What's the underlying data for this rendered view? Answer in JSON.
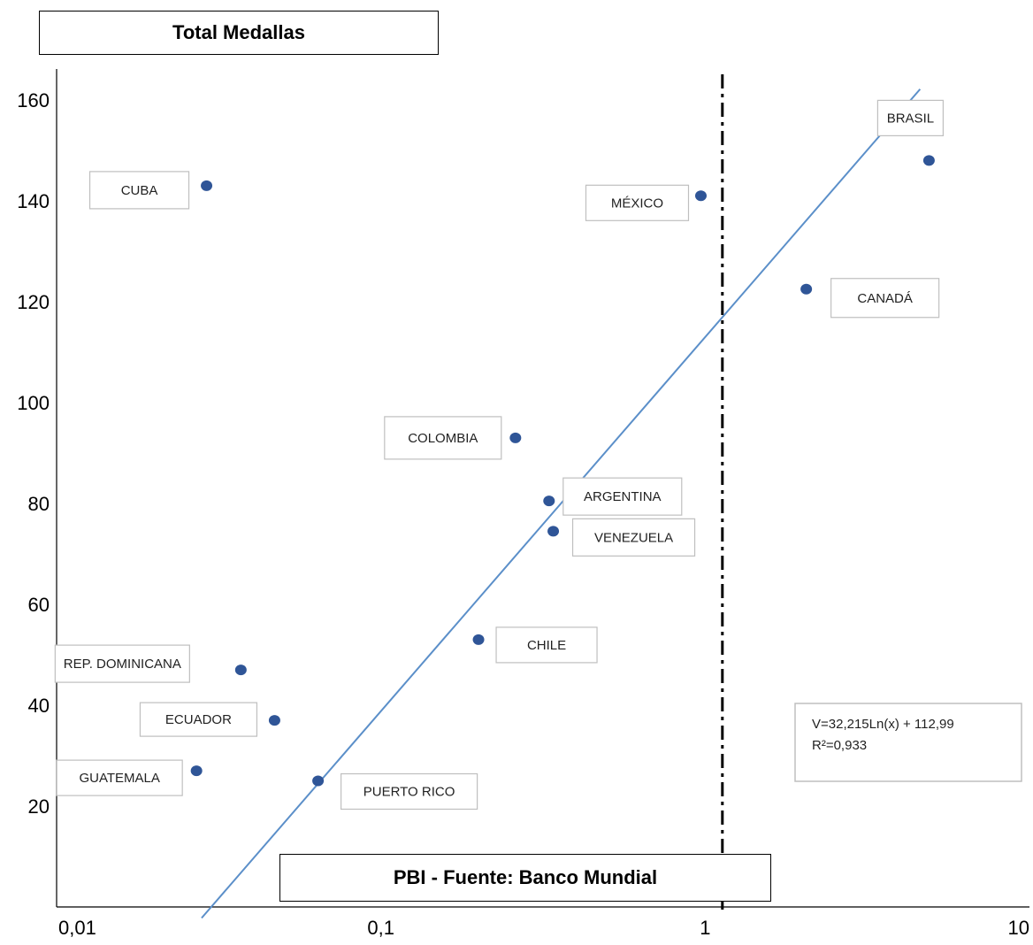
{
  "chart_data": {
    "type": "scatter",
    "ylabel": "Total Medallas",
    "xlabel": "PBI - Fuente: Banco Mundial",
    "x_scale": "log",
    "x_range": [
      0.01,
      10
    ],
    "y_range": [
      0,
      160
    ],
    "x_ticks": [
      0.01,
      0.1,
      1,
      10
    ],
    "x_tick_labels": [
      "0,01",
      "0,1",
      "1",
      "10"
    ],
    "y_ticks": [
      20,
      40,
      60,
      80,
      100,
      120,
      140,
      160
    ],
    "y_tick_labels": [
      "20",
      "40",
      "60",
      "80",
      "100",
      "120",
      "140",
      "160"
    ],
    "points": [
      {
        "label": "CUBA",
        "x": 0.029,
        "y": 143
      },
      {
        "label": "MÉXICO",
        "x": 0.97,
        "y": 141
      },
      {
        "label": "BRASIL",
        "x": 4.9,
        "y": 148
      },
      {
        "label": "CANADÁ",
        "x": 2.05,
        "y": 122.5
      },
      {
        "label": "COLOMBIA",
        "x": 0.26,
        "y": 93
      },
      {
        "label": "ARGENTINA",
        "x": 0.33,
        "y": 80.5
      },
      {
        "label": "VENEZUELA",
        "x": 0.34,
        "y": 74.5
      },
      {
        "label": "CHILE",
        "x": 0.2,
        "y": 53
      },
      {
        "label": "REP. DOMINICANA",
        "x": 0.037,
        "y": 47
      },
      {
        "label": "ECUADOR",
        "x": 0.047,
        "y": 37
      },
      {
        "label": "GUATEMALA",
        "x": 0.027,
        "y": 27
      },
      {
        "label": "PUERTO RICO",
        "x": 0.064,
        "y": 25
      }
    ],
    "trendline": {
      "equation_line1": "V=32,215Ln(x) + 112,99",
      "equation_line2": "R²=0,933",
      "a": 32.215,
      "b": 112.99,
      "x_start": 0.028,
      "x_end": 4.6
    },
    "reference_line_x": 1.13,
    "colors": {
      "point": "#2F5597",
      "trend": "#5B8FC9",
      "axis": "#000000",
      "label_border": "#BFBFBF"
    }
  }
}
